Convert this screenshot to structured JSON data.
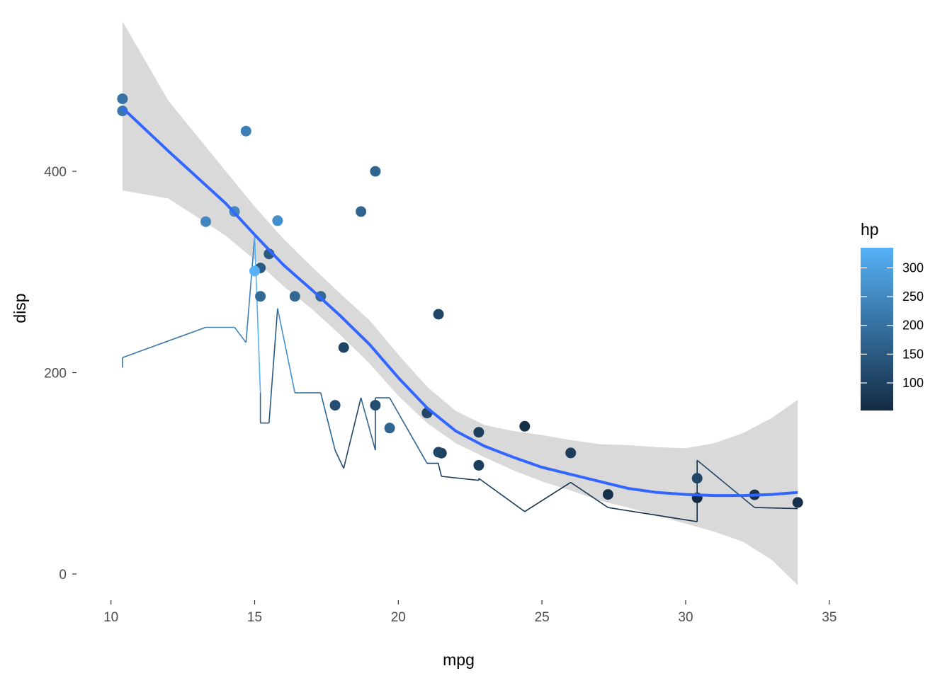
{
  "chart_data": {
    "type": "scatter",
    "title": "",
    "xlabel": "mpg",
    "ylabel": "disp",
    "xlim": [
      8.8,
      35.4
    ],
    "ylim": [
      -26,
      554
    ],
    "x_ticks": [
      10,
      15,
      20,
      25,
      30,
      35
    ],
    "x_tick_labels": [
      "10",
      "15",
      "20",
      "25",
      "30",
      "35"
    ],
    "y_ticks": [
      0,
      200,
      400
    ],
    "y_tick_labels": [
      "0",
      "200",
      "400"
    ],
    "grid": false,
    "legend": {
      "title": "hp",
      "position": "right",
      "type": "colorbar",
      "range": [
        52,
        335
      ],
      "ticks": [
        100,
        150,
        200,
        250,
        300
      ],
      "tick_labels": [
        "100",
        "150",
        "200",
        "250",
        "300"
      ],
      "low_color": "#132B43",
      "high_color": "#56B1F7"
    },
    "points": [
      {
        "mpg": 21.0,
        "disp": 160,
        "hp": 110
      },
      {
        "mpg": 21.0,
        "disp": 160,
        "hp": 110
      },
      {
        "mpg": 22.8,
        "disp": 108,
        "hp": 93
      },
      {
        "mpg": 21.4,
        "disp": 258,
        "hp": 110
      },
      {
        "mpg": 18.7,
        "disp": 360,
        "hp": 175
      },
      {
        "mpg": 18.1,
        "disp": 225,
        "hp": 105
      },
      {
        "mpg": 14.3,
        "disp": 360,
        "hp": 245
      },
      {
        "mpg": 24.4,
        "disp": 146.7,
        "hp": 62
      },
      {
        "mpg": 22.8,
        "disp": 140.8,
        "hp": 95
      },
      {
        "mpg": 19.2,
        "disp": 167.6,
        "hp": 123
      },
      {
        "mpg": 17.8,
        "disp": 167.6,
        "hp": 123
      },
      {
        "mpg": 16.4,
        "disp": 275.8,
        "hp": 180
      },
      {
        "mpg": 17.3,
        "disp": 275.8,
        "hp": 180
      },
      {
        "mpg": 15.2,
        "disp": 275.8,
        "hp": 180
      },
      {
        "mpg": 10.4,
        "disp": 472,
        "hp": 205
      },
      {
        "mpg": 10.4,
        "disp": 460,
        "hp": 215
      },
      {
        "mpg": 14.7,
        "disp": 440,
        "hp": 230
      },
      {
        "mpg": 32.4,
        "disp": 78.7,
        "hp": 66
      },
      {
        "mpg": 30.4,
        "disp": 75.7,
        "hp": 52
      },
      {
        "mpg": 33.9,
        "disp": 71.1,
        "hp": 65
      },
      {
        "mpg": 21.5,
        "disp": 120.1,
        "hp": 97
      },
      {
        "mpg": 15.5,
        "disp": 318,
        "hp": 150
      },
      {
        "mpg": 15.2,
        "disp": 304,
        "hp": 150
      },
      {
        "mpg": 13.3,
        "disp": 350,
        "hp": 245
      },
      {
        "mpg": 19.2,
        "disp": 400,
        "hp": 175
      },
      {
        "mpg": 27.3,
        "disp": 79,
        "hp": 66
      },
      {
        "mpg": 26.0,
        "disp": 120.3,
        "hp": 91
      },
      {
        "mpg": 30.4,
        "disp": 95.1,
        "hp": 113
      },
      {
        "mpg": 15.8,
        "disp": 351,
        "hp": 264
      },
      {
        "mpg": 19.7,
        "disp": 145,
        "hp": 175
      },
      {
        "mpg": 15.0,
        "disp": 301,
        "hp": 335
      },
      {
        "mpg": 21.4,
        "disp": 121,
        "hp": 109
      }
    ],
    "line": [
      {
        "mpg": 10.4,
        "value": 205
      },
      {
        "mpg": 10.4,
        "value": 215
      },
      {
        "mpg": 13.3,
        "value": 245
      },
      {
        "mpg": 14.3,
        "value": 245
      },
      {
        "mpg": 14.7,
        "value": 230
      },
      {
        "mpg": 15.0,
        "value": 335
      },
      {
        "mpg": 15.2,
        "value": 180
      },
      {
        "mpg": 15.2,
        "value": 150
      },
      {
        "mpg": 15.5,
        "value": 150
      },
      {
        "mpg": 15.8,
        "value": 264
      },
      {
        "mpg": 16.4,
        "value": 180
      },
      {
        "mpg": 17.3,
        "value": 180
      },
      {
        "mpg": 17.8,
        "value": 123
      },
      {
        "mpg": 18.1,
        "value": 105
      },
      {
        "mpg": 18.7,
        "value": 175
      },
      {
        "mpg": 19.2,
        "value": 123
      },
      {
        "mpg": 19.2,
        "value": 175
      },
      {
        "mpg": 19.7,
        "value": 175
      },
      {
        "mpg": 21.0,
        "value": 110
      },
      {
        "mpg": 21.0,
        "value": 110
      },
      {
        "mpg": 21.4,
        "value": 110
      },
      {
        "mpg": 21.4,
        "value": 109
      },
      {
        "mpg": 21.5,
        "value": 97
      },
      {
        "mpg": 22.8,
        "value": 93
      },
      {
        "mpg": 22.8,
        "value": 95
      },
      {
        "mpg": 24.4,
        "value": 62
      },
      {
        "mpg": 26.0,
        "value": 91
      },
      {
        "mpg": 27.3,
        "value": 66
      },
      {
        "mpg": 30.4,
        "value": 52
      },
      {
        "mpg": 30.4,
        "value": 113
      },
      {
        "mpg": 32.4,
        "value": 66
      },
      {
        "mpg": 33.9,
        "value": 65
      }
    ],
    "smooth": {
      "method": "loess",
      "line_color": "#3366FF",
      "band_color": "#D9D9D9",
      "x": [
        10.4,
        12.0,
        14.0,
        15.0,
        16.0,
        17.0,
        18.0,
        19.0,
        20.0,
        21.0,
        22.0,
        23.0,
        24.0,
        25.0,
        26.0,
        27.0,
        28.0,
        29.0,
        30.0,
        31.0,
        32.0,
        33.0,
        33.9
      ],
      "fit": [
        463,
        420,
        368,
        337,
        307,
        282,
        256,
        228,
        195,
        165,
        142,
        127,
        116,
        106,
        99,
        92,
        85,
        81,
        79,
        78,
        78,
        79,
        81
      ],
      "lower": [
        381,
        373,
        336,
        312,
        286,
        263,
        237,
        209,
        177,
        150,
        130,
        116,
        103,
        92,
        83,
        73,
        66,
        58,
        50,
        42,
        32,
        14,
        -11
      ],
      "upper": [
        549,
        470,
        400,
        365,
        333,
        305,
        278,
        252,
        218,
        186,
        162,
        148,
        142,
        138,
        133,
        129,
        128,
        126,
        125,
        130,
        140,
        155,
        173
      ]
    }
  }
}
